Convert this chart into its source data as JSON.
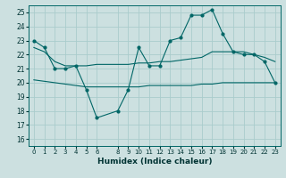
{
  "xlabel": "Humidex (Indice chaleur)",
  "bg_color": "#cce0e0",
  "grid_color": "#aacccc",
  "line_color": "#006666",
  "x_ticks": [
    0,
    1,
    2,
    3,
    4,
    5,
    6,
    8,
    9,
    10,
    11,
    12,
    13,
    14,
    15,
    16,
    17,
    18,
    19,
    20,
    21,
    22,
    23
  ],
  "ylim": [
    15.5,
    25.5
  ],
  "xlim": [
    -0.5,
    23.5
  ],
  "yticks": [
    16,
    17,
    18,
    19,
    20,
    21,
    22,
    23,
    24,
    25
  ],
  "series1_x": [
    0,
    1,
    2,
    3,
    4,
    5,
    6,
    8,
    9,
    10,
    11,
    12,
    13,
    14,
    15,
    16,
    17,
    18,
    19,
    20,
    21,
    22,
    23
  ],
  "series1_y": [
    23.0,
    22.5,
    21.0,
    21.0,
    21.2,
    19.5,
    17.5,
    18.0,
    19.5,
    22.5,
    21.2,
    21.2,
    23.0,
    23.2,
    24.8,
    24.8,
    25.2,
    23.5,
    22.2,
    22.0,
    22.0,
    21.5,
    20.0
  ],
  "series2_x": [
    0,
    1,
    2,
    3,
    4,
    5,
    6,
    8,
    9,
    10,
    11,
    12,
    13,
    14,
    15,
    16,
    17,
    18,
    19,
    20,
    21,
    22,
    23
  ],
  "series2_y": [
    22.5,
    22.2,
    21.5,
    21.2,
    21.2,
    21.2,
    21.3,
    21.3,
    21.3,
    21.4,
    21.4,
    21.5,
    21.5,
    21.6,
    21.7,
    21.8,
    22.2,
    22.2,
    22.2,
    22.2,
    22.0,
    21.8,
    21.5
  ],
  "series3_x": [
    0,
    1,
    2,
    3,
    4,
    5,
    6,
    8,
    9,
    10,
    11,
    12,
    13,
    14,
    15,
    16,
    17,
    18,
    19,
    20,
    21,
    22,
    23
  ],
  "series3_y": [
    20.2,
    20.1,
    20.0,
    19.9,
    19.8,
    19.7,
    19.7,
    19.7,
    19.7,
    19.7,
    19.8,
    19.8,
    19.8,
    19.8,
    19.8,
    19.9,
    19.9,
    20.0,
    20.0,
    20.0,
    20.0,
    20.0,
    20.0
  ]
}
